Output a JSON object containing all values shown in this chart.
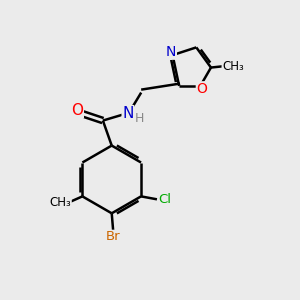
{
  "background_color": "#ebebeb",
  "bond_color": "#000000",
  "atom_colors": {
    "O": "#ff0000",
    "N": "#0000cc",
    "Cl": "#00aa00",
    "Br": "#cc6600",
    "C": "#000000",
    "H": "#888888"
  },
  "figsize": [
    3.0,
    3.0
  ],
  "dpi": 100
}
